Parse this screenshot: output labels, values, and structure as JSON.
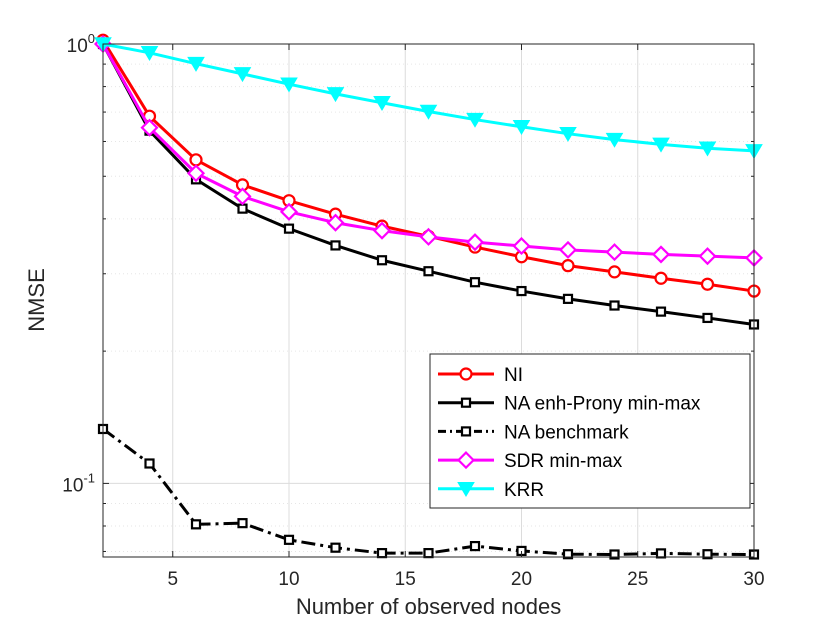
{
  "chart_data": {
    "type": "line",
    "title": "",
    "xlabel": "Number of observed nodes",
    "ylabel": "NMSE",
    "xscale": "linear",
    "yscale": "log",
    "xlim": [
      2,
      30
    ],
    "ylim": [
      0.068,
      1.0
    ],
    "xticks": [
      5,
      10,
      15,
      20,
      25,
      30
    ],
    "yticks": [
      {
        "value": 0.1,
        "base": "10",
        "exp": "-1"
      },
      {
        "value": 1.0,
        "base": "10",
        "exp": "0"
      }
    ],
    "grid": true,
    "legend_position": "bottom-right",
    "series": [
      {
        "name": "NI",
        "color": "#ff0000",
        "marker": "circle",
        "linestyle": "solid",
        "x": [
          2,
          4,
          6,
          8,
          10,
          12,
          14,
          16,
          18,
          20,
          22,
          24,
          26,
          28,
          30
        ],
        "y": [
          1.02,
          0.685,
          0.545,
          0.478,
          0.44,
          0.41,
          0.385,
          0.365,
          0.345,
          0.328,
          0.313,
          0.303,
          0.293,
          0.284,
          0.274
        ]
      },
      {
        "name": "NA enh-Prony min-max",
        "color": "#000000",
        "marker": "square",
        "linestyle": "solid",
        "x": [
          2,
          4,
          6,
          8,
          10,
          12,
          14,
          16,
          18,
          20,
          22,
          24,
          26,
          28,
          30
        ],
        "y": [
          1.0,
          0.635,
          0.492,
          0.422,
          0.38,
          0.348,
          0.322,
          0.304,
          0.287,
          0.274,
          0.263,
          0.254,
          0.246,
          0.238,
          0.23
        ]
      },
      {
        "name": "NA benchmark",
        "color": "#000000",
        "marker": "square",
        "linestyle": "dashdot",
        "x": [
          2,
          4,
          6,
          8,
          10,
          12,
          14,
          16,
          18,
          20,
          22,
          24,
          26,
          28,
          30
        ],
        "y": [
          0.133,
          0.111,
          0.0807,
          0.0812,
          0.0744,
          0.0714,
          0.0694,
          0.0694,
          0.072,
          0.0702,
          0.069,
          0.0689,
          0.0693,
          0.069,
          0.0689
        ]
      },
      {
        "name": "SDR min-max",
        "color": "#ff00ff",
        "marker": "diamond",
        "linestyle": "solid",
        "x": [
          2,
          4,
          6,
          8,
          10,
          12,
          14,
          16,
          18,
          20,
          22,
          24,
          26,
          28,
          30
        ],
        "y": [
          1.0,
          0.645,
          0.508,
          0.45,
          0.415,
          0.392,
          0.376,
          0.364,
          0.354,
          0.347,
          0.34,
          0.336,
          0.332,
          0.329,
          0.326
        ]
      },
      {
        "name": "KRR",
        "color": "#00ffff",
        "marker": "triangle-down",
        "linestyle": "solid",
        "x": [
          2,
          4,
          6,
          8,
          10,
          12,
          14,
          16,
          18,
          20,
          22,
          24,
          26,
          28,
          30
        ],
        "y": [
          1.0,
          0.955,
          0.902,
          0.855,
          0.81,
          0.77,
          0.735,
          0.702,
          0.673,
          0.648,
          0.625,
          0.606,
          0.591,
          0.579,
          0.571
        ]
      }
    ]
  }
}
